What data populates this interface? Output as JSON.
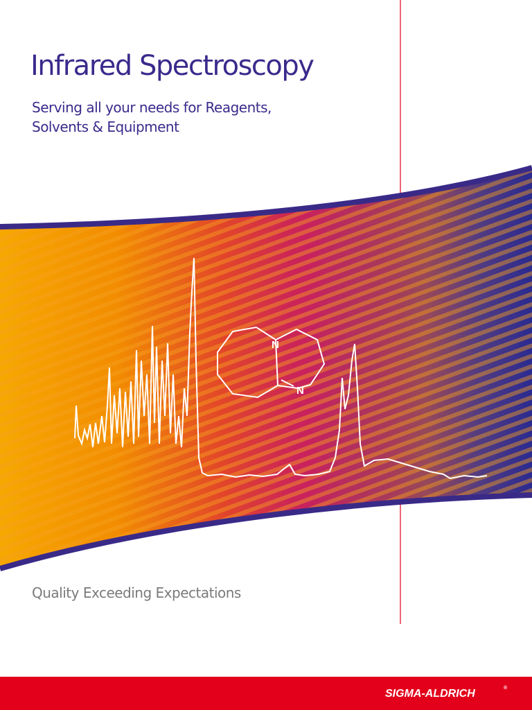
{
  "cover": {
    "title": "Infrared Spectroscopy",
    "subtitle_lines": [
      "Serving all your needs for Reagents,",
      "Solvents & Equipment"
    ],
    "tagline": "Quality Exceeding Expectations",
    "molecule_atoms": [
      "N",
      "N"
    ],
    "logo": "SIGMA-ALDRICH",
    "logo_mark": "®"
  }
}
